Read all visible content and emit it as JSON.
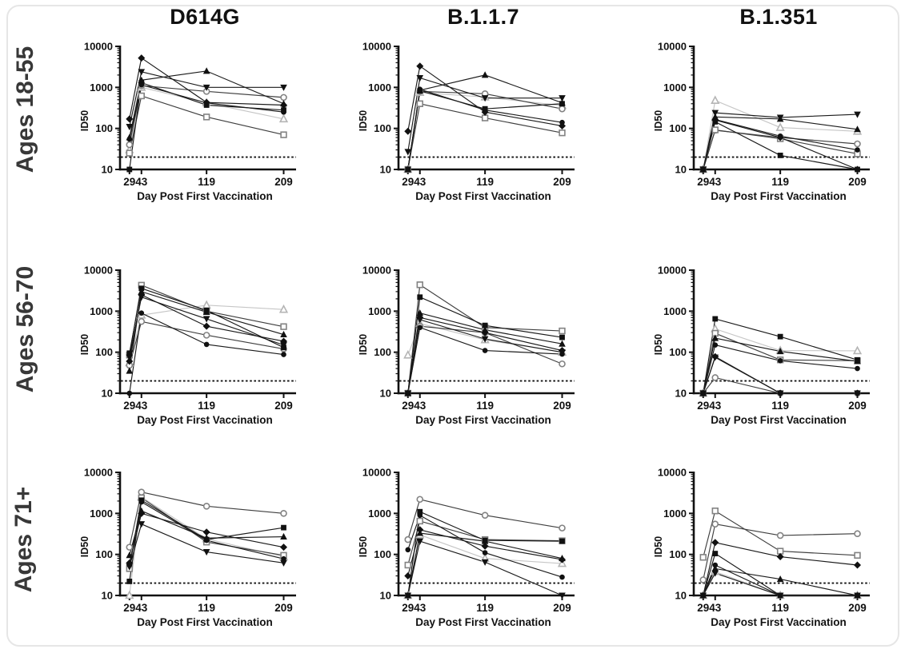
{
  "figure": {
    "column_titles": [
      "D614G",
      "B.1.1.7",
      "B.1.351"
    ],
    "row_labels": [
      "Ages 18-55",
      "Ages  56-70",
      "Ages 71+"
    ]
  },
  "chart_defaults": {
    "type": "line",
    "xlabel": "Day Post First Vaccination",
    "ylabel": "ID50",
    "x_ticks": [
      29,
      43,
      119,
      209
    ],
    "y_ticks": [
      10,
      100,
      1000,
      10000
    ],
    "y_scale": "log",
    "ylim": [
      10,
      10000
    ],
    "xlim": [
      18,
      216
    ],
    "detection_limit": 20,
    "grid": false,
    "legend": "none",
    "colors": {
      "axis": "#111111",
      "filled": "#111111",
      "open_gray": "#828282",
      "open_light": "#b5b5b5",
      "line_filled": "#1a1a1a",
      "line_open": "#3f3f3f",
      "line_open_light": "#c6c6c6",
      "detection_line": "#111111",
      "card_border": "#e6e6e6",
      "row_label_color": "#383838"
    }
  },
  "chart_data": [
    {
      "variant": "D614G",
      "age_group": "Ages 18-55",
      "x": [
        29,
        43,
        119,
        209
      ],
      "series": [
        {
          "marker": "triangle-up",
          "style": "open-light",
          "values": [
            30,
            1000,
            420,
            170
          ]
        },
        {
          "marker": "circle",
          "style": "open",
          "values": [
            40,
            1100,
            800,
            570
          ]
        },
        {
          "marker": "square",
          "style": "open",
          "values": [
            25,
            620,
            190,
            70
          ]
        },
        {
          "marker": "circle",
          "style": "filled",
          "values": [
            55,
            1150,
            420,
            250
          ]
        },
        {
          "marker": "square",
          "style": "filled",
          "values": [
            10,
            1300,
            370,
            280
          ]
        },
        {
          "marker": "diamond",
          "style": "filled",
          "values": [
            170,
            5200,
            430,
            370
          ]
        },
        {
          "marker": "triangle-up",
          "style": "filled",
          "values": [
            60,
            1500,
            2500,
            400
          ]
        },
        {
          "marker": "triangle-down",
          "style": "filled",
          "values": [
            110,
            2400,
            1000,
            1000
          ]
        }
      ]
    },
    {
      "variant": "B.1.1.7",
      "age_group": "Ages 18-55",
      "x": [
        29,
        43,
        119,
        209
      ],
      "series": [
        {
          "marker": "triangle-up",
          "style": "open-light",
          "values": [
            10,
            750,
            580,
            360
          ]
        },
        {
          "marker": "circle",
          "style": "open",
          "values": [
            10,
            800,
            700,
            300
          ]
        },
        {
          "marker": "square",
          "style": "open",
          "values": [
            10,
            400,
            180,
            78
          ]
        },
        {
          "marker": "circle",
          "style": "filled",
          "values": [
            10,
            900,
            280,
            140
          ]
        },
        {
          "marker": "square",
          "style": "filled",
          "values": [
            10,
            820,
            300,
            400
          ]
        },
        {
          "marker": "diamond",
          "style": "filled",
          "values": [
            85,
            3300,
            250,
            115
          ]
        },
        {
          "marker": "triangle-up",
          "style": "filled",
          "values": [
            10,
            850,
            2000,
            420
          ]
        },
        {
          "marker": "triangle-down",
          "style": "filled",
          "values": [
            27,
            1700,
            550,
            550
          ]
        }
      ]
    },
    {
      "variant": "B.1.351",
      "age_group": "Ages 18-55",
      "x": [
        29,
        43,
        119,
        209
      ],
      "series": [
        {
          "marker": "triangle-up",
          "style": "open-light",
          "values": [
            10,
            480,
            105,
            85
          ]
        },
        {
          "marker": "circle",
          "style": "open",
          "values": [
            10,
            90,
            60,
            42
          ]
        },
        {
          "marker": "square",
          "style": "open",
          "values": [
            10,
            92,
            56,
            24
          ]
        },
        {
          "marker": "circle",
          "style": "filled",
          "values": [
            10,
            165,
            65,
            30
          ]
        },
        {
          "marker": "square",
          "style": "filled",
          "values": [
            10,
            145,
            22,
            10
          ]
        },
        {
          "marker": "diamond",
          "style": "filled",
          "values": [
            10,
            160,
            60,
            10
          ]
        },
        {
          "marker": "triangle-up",
          "style": "filled",
          "values": [
            10,
            190,
            170,
            95
          ]
        },
        {
          "marker": "triangle-down",
          "style": "filled",
          "values": [
            10,
            240,
            185,
            220
          ]
        }
      ]
    },
    {
      "variant": "D614G",
      "age_group": "Ages  56-70",
      "x": [
        29,
        43,
        119,
        209
      ],
      "series": [
        {
          "marker": "triangle-up",
          "style": "open-light",
          "values": [
            55,
            800,
            1400,
            1100
          ]
        },
        {
          "marker": "circle",
          "style": "open",
          "values": [
            48,
            560,
            260,
            120
          ]
        },
        {
          "marker": "square",
          "style": "open",
          "values": [
            85,
            4300,
            1000,
            420
          ]
        },
        {
          "marker": "circle",
          "style": "filled",
          "values": [
            10,
            900,
            155,
            88
          ]
        },
        {
          "marker": "square",
          "style": "filled",
          "values": [
            95,
            3600,
            1050,
            130
          ]
        },
        {
          "marker": "diamond",
          "style": "filled",
          "values": [
            60,
            2500,
            430,
            185
          ]
        },
        {
          "marker": "triangle-up",
          "style": "filled",
          "values": [
            35,
            3000,
            950,
            270
          ]
        },
        {
          "marker": "triangle-down",
          "style": "filled",
          "values": [
            75,
            2200,
            650,
            150
          ]
        }
      ]
    },
    {
      "variant": "B.1.1.7",
      "age_group": "Ages  56-70",
      "x": [
        29,
        43,
        119,
        209
      ],
      "series": [
        {
          "marker": "triangle-up",
          "style": "open-light",
          "values": [
            85,
            500,
            200,
            100
          ]
        },
        {
          "marker": "circle",
          "style": "open",
          "values": [
            10,
            430,
            300,
            52
          ]
        },
        {
          "marker": "square",
          "style": "open",
          "values": [
            10,
            4400,
            400,
            330
          ]
        },
        {
          "marker": "circle",
          "style": "filled",
          "values": [
            10,
            400,
            110,
            90
          ]
        },
        {
          "marker": "square",
          "style": "filled",
          "values": [
            10,
            2200,
            450,
            230
          ]
        },
        {
          "marker": "diamond",
          "style": "filled",
          "values": [
            10,
            700,
            300,
            110
          ]
        },
        {
          "marker": "triangle-up",
          "style": "filled",
          "values": [
            10,
            900,
            350,
            160
          ]
        },
        {
          "marker": "triangle-down",
          "style": "filled",
          "values": [
            10,
            620,
            210,
            100
          ]
        }
      ]
    },
    {
      "variant": "B.1.351",
      "age_group": "Ages  56-70",
      "x": [
        29,
        43,
        119,
        209
      ],
      "series": [
        {
          "marker": "triangle-up",
          "style": "open-light",
          "values": [
            10,
            370,
            110,
            108
          ]
        },
        {
          "marker": "circle",
          "style": "open",
          "values": [
            10,
            24,
            10,
            10
          ]
        },
        {
          "marker": "square",
          "style": "open",
          "values": [
            10,
            290,
            65,
            62
          ]
        },
        {
          "marker": "circle",
          "style": "filled",
          "values": [
            10,
            150,
            62,
            40
          ]
        },
        {
          "marker": "square",
          "style": "filled",
          "values": [
            10,
            650,
            240,
            65
          ]
        },
        {
          "marker": "diamond",
          "style": "filled",
          "values": [
            10,
            78,
            10,
            10
          ]
        },
        {
          "marker": "triangle-up",
          "style": "filled",
          "values": [
            10,
            220,
            105,
            60
          ]
        },
        {
          "marker": "triangle-down",
          "style": "filled",
          "values": [
            10,
            75,
            10,
            10
          ]
        }
      ]
    },
    {
      "variant": "D614G",
      "age_group": "Ages 71+",
      "x": [
        29,
        43,
        119,
        209
      ],
      "series": [
        {
          "marker": "triangle-up",
          "style": "open-light",
          "values": [
            10,
            2500,
            240,
            88
          ]
        },
        {
          "marker": "circle",
          "style": "open",
          "values": [
            150,
            3300,
            1500,
            1000
          ]
        },
        {
          "marker": "square",
          "style": "open",
          "values": [
            45,
            2400,
            200,
            95
          ]
        },
        {
          "marker": "circle",
          "style": "filled",
          "values": [
            55,
            1900,
            220,
            78
          ]
        },
        {
          "marker": "square",
          "style": "filled",
          "values": [
            22,
            2100,
            230,
            450
          ]
        },
        {
          "marker": "diamond",
          "style": "filled",
          "values": [
            62,
            1000,
            350,
            150
          ]
        },
        {
          "marker": "triangle-up",
          "style": "filled",
          "values": [
            95,
            1150,
            250,
            270
          ]
        },
        {
          "marker": "triangle-down",
          "style": "filled",
          "values": [
            50,
            550,
            115,
            62
          ]
        }
      ]
    },
    {
      "variant": "B.1.1.7",
      "age_group": "Ages 71+",
      "x": [
        29,
        43,
        119,
        209
      ],
      "series": [
        {
          "marker": "triangle-up",
          "style": "open-light",
          "values": [
            10,
            300,
            80,
            60
          ]
        },
        {
          "marker": "circle",
          "style": "open",
          "values": [
            230,
            2200,
            900,
            440
          ]
        },
        {
          "marker": "square",
          "style": "open",
          "values": [
            55,
            650,
            230,
            215
          ]
        },
        {
          "marker": "circle",
          "style": "filled",
          "values": [
            130,
            900,
            110,
            28
          ]
        },
        {
          "marker": "square",
          "style": "filled",
          "values": [
            10,
            1100,
            220,
            210
          ]
        },
        {
          "marker": "diamond",
          "style": "filled",
          "values": [
            30,
            400,
            160,
            75
          ]
        },
        {
          "marker": "triangle-up",
          "style": "filled",
          "values": [
            10,
            330,
            210,
            80
          ]
        },
        {
          "marker": "triangle-down",
          "style": "filled",
          "values": [
            10,
            210,
            65,
            10
          ]
        }
      ]
    },
    {
      "variant": "B.1.351",
      "age_group": "Ages 71+",
      "x": [
        29,
        43,
        119,
        209
      ],
      "series": [
        {
          "marker": "triangle-up",
          "style": "open-light",
          "values": [
            10,
            38,
            10,
            10
          ]
        },
        {
          "marker": "circle",
          "style": "open",
          "values": [
            24,
            550,
            290,
            320
          ]
        },
        {
          "marker": "square",
          "style": "open",
          "values": [
            85,
            1150,
            120,
            95
          ]
        },
        {
          "marker": "circle",
          "style": "filled",
          "values": [
            10,
            55,
            10,
            10
          ]
        },
        {
          "marker": "square",
          "style": "filled",
          "values": [
            10,
            105,
            10,
            10
          ]
        },
        {
          "marker": "diamond",
          "style": "filled",
          "values": [
            10,
            195,
            88,
            55
          ]
        },
        {
          "marker": "triangle-up",
          "style": "filled",
          "values": [
            10,
            45,
            25,
            10
          ]
        },
        {
          "marker": "triangle-down",
          "style": "filled",
          "values": [
            10,
            35,
            10,
            10
          ]
        }
      ]
    }
  ]
}
